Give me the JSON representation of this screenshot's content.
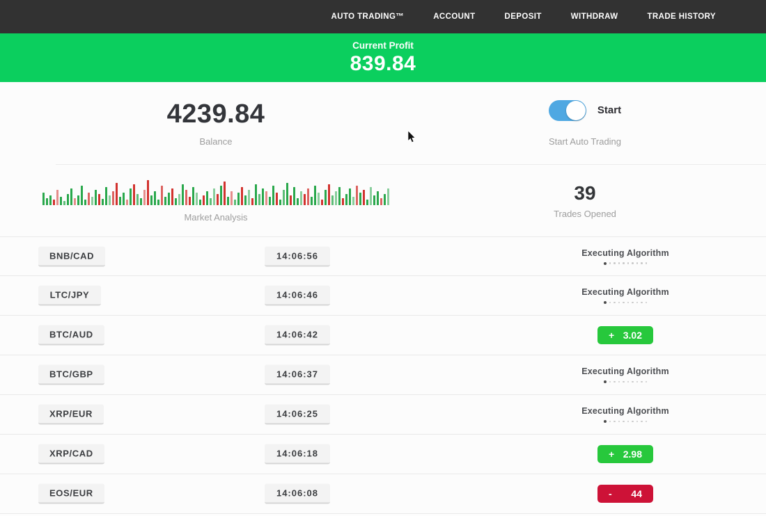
{
  "nav": {
    "items": [
      "AUTO TRADING™",
      "ACCOUNT",
      "DEPOSIT",
      "WITHDRAW",
      "TRADE HISTORY"
    ]
  },
  "banner": {
    "label": "Current Profit",
    "value": "839.84"
  },
  "summary": {
    "balance": {
      "value": "4239.84",
      "label": "Balance"
    },
    "auto_trading": {
      "toggle_label": "Start",
      "label": "Start Auto Trading",
      "toggle_on": true
    },
    "market": {
      "label": "Market Analysis",
      "bars": [
        [
          18,
          "g"
        ],
        [
          10,
          "g"
        ],
        [
          14,
          "g"
        ],
        [
          8,
          "r"
        ],
        [
          22,
          "r"
        ],
        [
          12,
          "g"
        ],
        [
          6,
          "g"
        ],
        [
          16,
          "g"
        ],
        [
          24,
          "g"
        ],
        [
          10,
          "r"
        ],
        [
          14,
          "g"
        ],
        [
          28,
          "g"
        ],
        [
          8,
          "g"
        ],
        [
          18,
          "r"
        ],
        [
          12,
          "g"
        ],
        [
          22,
          "g"
        ],
        [
          16,
          "r"
        ],
        [
          9,
          "g"
        ],
        [
          26,
          "g"
        ],
        [
          14,
          "g"
        ],
        [
          20,
          "r"
        ],
        [
          32,
          "r"
        ],
        [
          12,
          "g"
        ],
        [
          18,
          "g"
        ],
        [
          8,
          "r"
        ],
        [
          24,
          "g"
        ],
        [
          30,
          "r"
        ],
        [
          16,
          "g"
        ],
        [
          10,
          "g"
        ],
        [
          22,
          "r"
        ],
        [
          36,
          "r"
        ],
        [
          14,
          "g"
        ],
        [
          20,
          "g"
        ],
        [
          8,
          "g"
        ],
        [
          28,
          "r"
        ],
        [
          12,
          "g"
        ],
        [
          18,
          "g"
        ],
        [
          24,
          "r"
        ],
        [
          10,
          "g"
        ],
        [
          16,
          "g"
        ],
        [
          30,
          "g"
        ],
        [
          22,
          "r"
        ],
        [
          12,
          "r"
        ],
        [
          26,
          "g"
        ],
        [
          18,
          "g"
        ],
        [
          8,
          "g"
        ],
        [
          14,
          "r"
        ],
        [
          20,
          "g"
        ],
        [
          10,
          "g"
        ],
        [
          24,
          "g"
        ],
        [
          16,
          "r"
        ],
        [
          28,
          "g"
        ],
        [
          34,
          "r"
        ],
        [
          12,
          "g"
        ],
        [
          20,
          "r"
        ],
        [
          8,
          "g"
        ],
        [
          18,
          "g"
        ],
        [
          26,
          "r"
        ],
        [
          14,
          "g"
        ],
        [
          22,
          "g"
        ],
        [
          10,
          "r"
        ],
        [
          30,
          "g"
        ],
        [
          16,
          "g"
        ],
        [
          24,
          "g"
        ],
        [
          20,
          "r"
        ],
        [
          12,
          "g"
        ],
        [
          28,
          "g"
        ],
        [
          18,
          "r"
        ],
        [
          8,
          "g"
        ],
        [
          22,
          "g"
        ],
        [
          32,
          "g"
        ],
        [
          14,
          "r"
        ],
        [
          26,
          "g"
        ],
        [
          10,
          "g"
        ],
        [
          20,
          "g"
        ],
        [
          16,
          "r"
        ],
        [
          24,
          "r"
        ],
        [
          12,
          "g"
        ],
        [
          28,
          "g"
        ],
        [
          18,
          "g"
        ],
        [
          8,
          "r"
        ],
        [
          22,
          "g"
        ],
        [
          30,
          "r"
        ],
        [
          14,
          "g"
        ],
        [
          20,
          "g"
        ],
        [
          26,
          "g"
        ],
        [
          10,
          "r"
        ],
        [
          16,
          "g"
        ],
        [
          24,
          "g"
        ],
        [
          12,
          "g"
        ],
        [
          28,
          "r"
        ],
        [
          18,
          "g"
        ],
        [
          22,
          "r"
        ],
        [
          8,
          "g"
        ],
        [
          26,
          "g"
        ],
        [
          14,
          "g"
        ],
        [
          20,
          "g"
        ],
        [
          10,
          "r"
        ],
        [
          16,
          "g"
        ],
        [
          24,
          "g"
        ]
      ]
    },
    "trades_opened": {
      "value": "39",
      "label": "Trades Opened"
    }
  },
  "table": {
    "executing_label": "Executing Algorithm",
    "dots_count": 10,
    "rows": [
      {
        "pair": "BNB/CAD",
        "time": "14:06:56",
        "status": "executing"
      },
      {
        "pair": "LTC/JPY",
        "time": "14:06:46",
        "status": "executing"
      },
      {
        "pair": "BTC/AUD",
        "time": "14:06:42",
        "status": "gain",
        "sign": "+",
        "value": "3.02"
      },
      {
        "pair": "BTC/GBP",
        "time": "14:06:37",
        "status": "executing"
      },
      {
        "pair": "XRP/EUR",
        "time": "14:06:25",
        "status": "executing"
      },
      {
        "pair": "XRP/CAD",
        "time": "14:06:18",
        "status": "gain",
        "sign": "+",
        "value": "2.98"
      },
      {
        "pair": "EOS/EUR",
        "time": "14:06:08",
        "status": "loss",
        "sign": "-",
        "value": "44"
      }
    ]
  },
  "colors": {
    "nav_bg": "#323232",
    "banner_green": "#0bcf5e",
    "badge_green": "#27c83c",
    "badge_red": "#cd1237",
    "toggle_blue": "#4fa8e2"
  }
}
